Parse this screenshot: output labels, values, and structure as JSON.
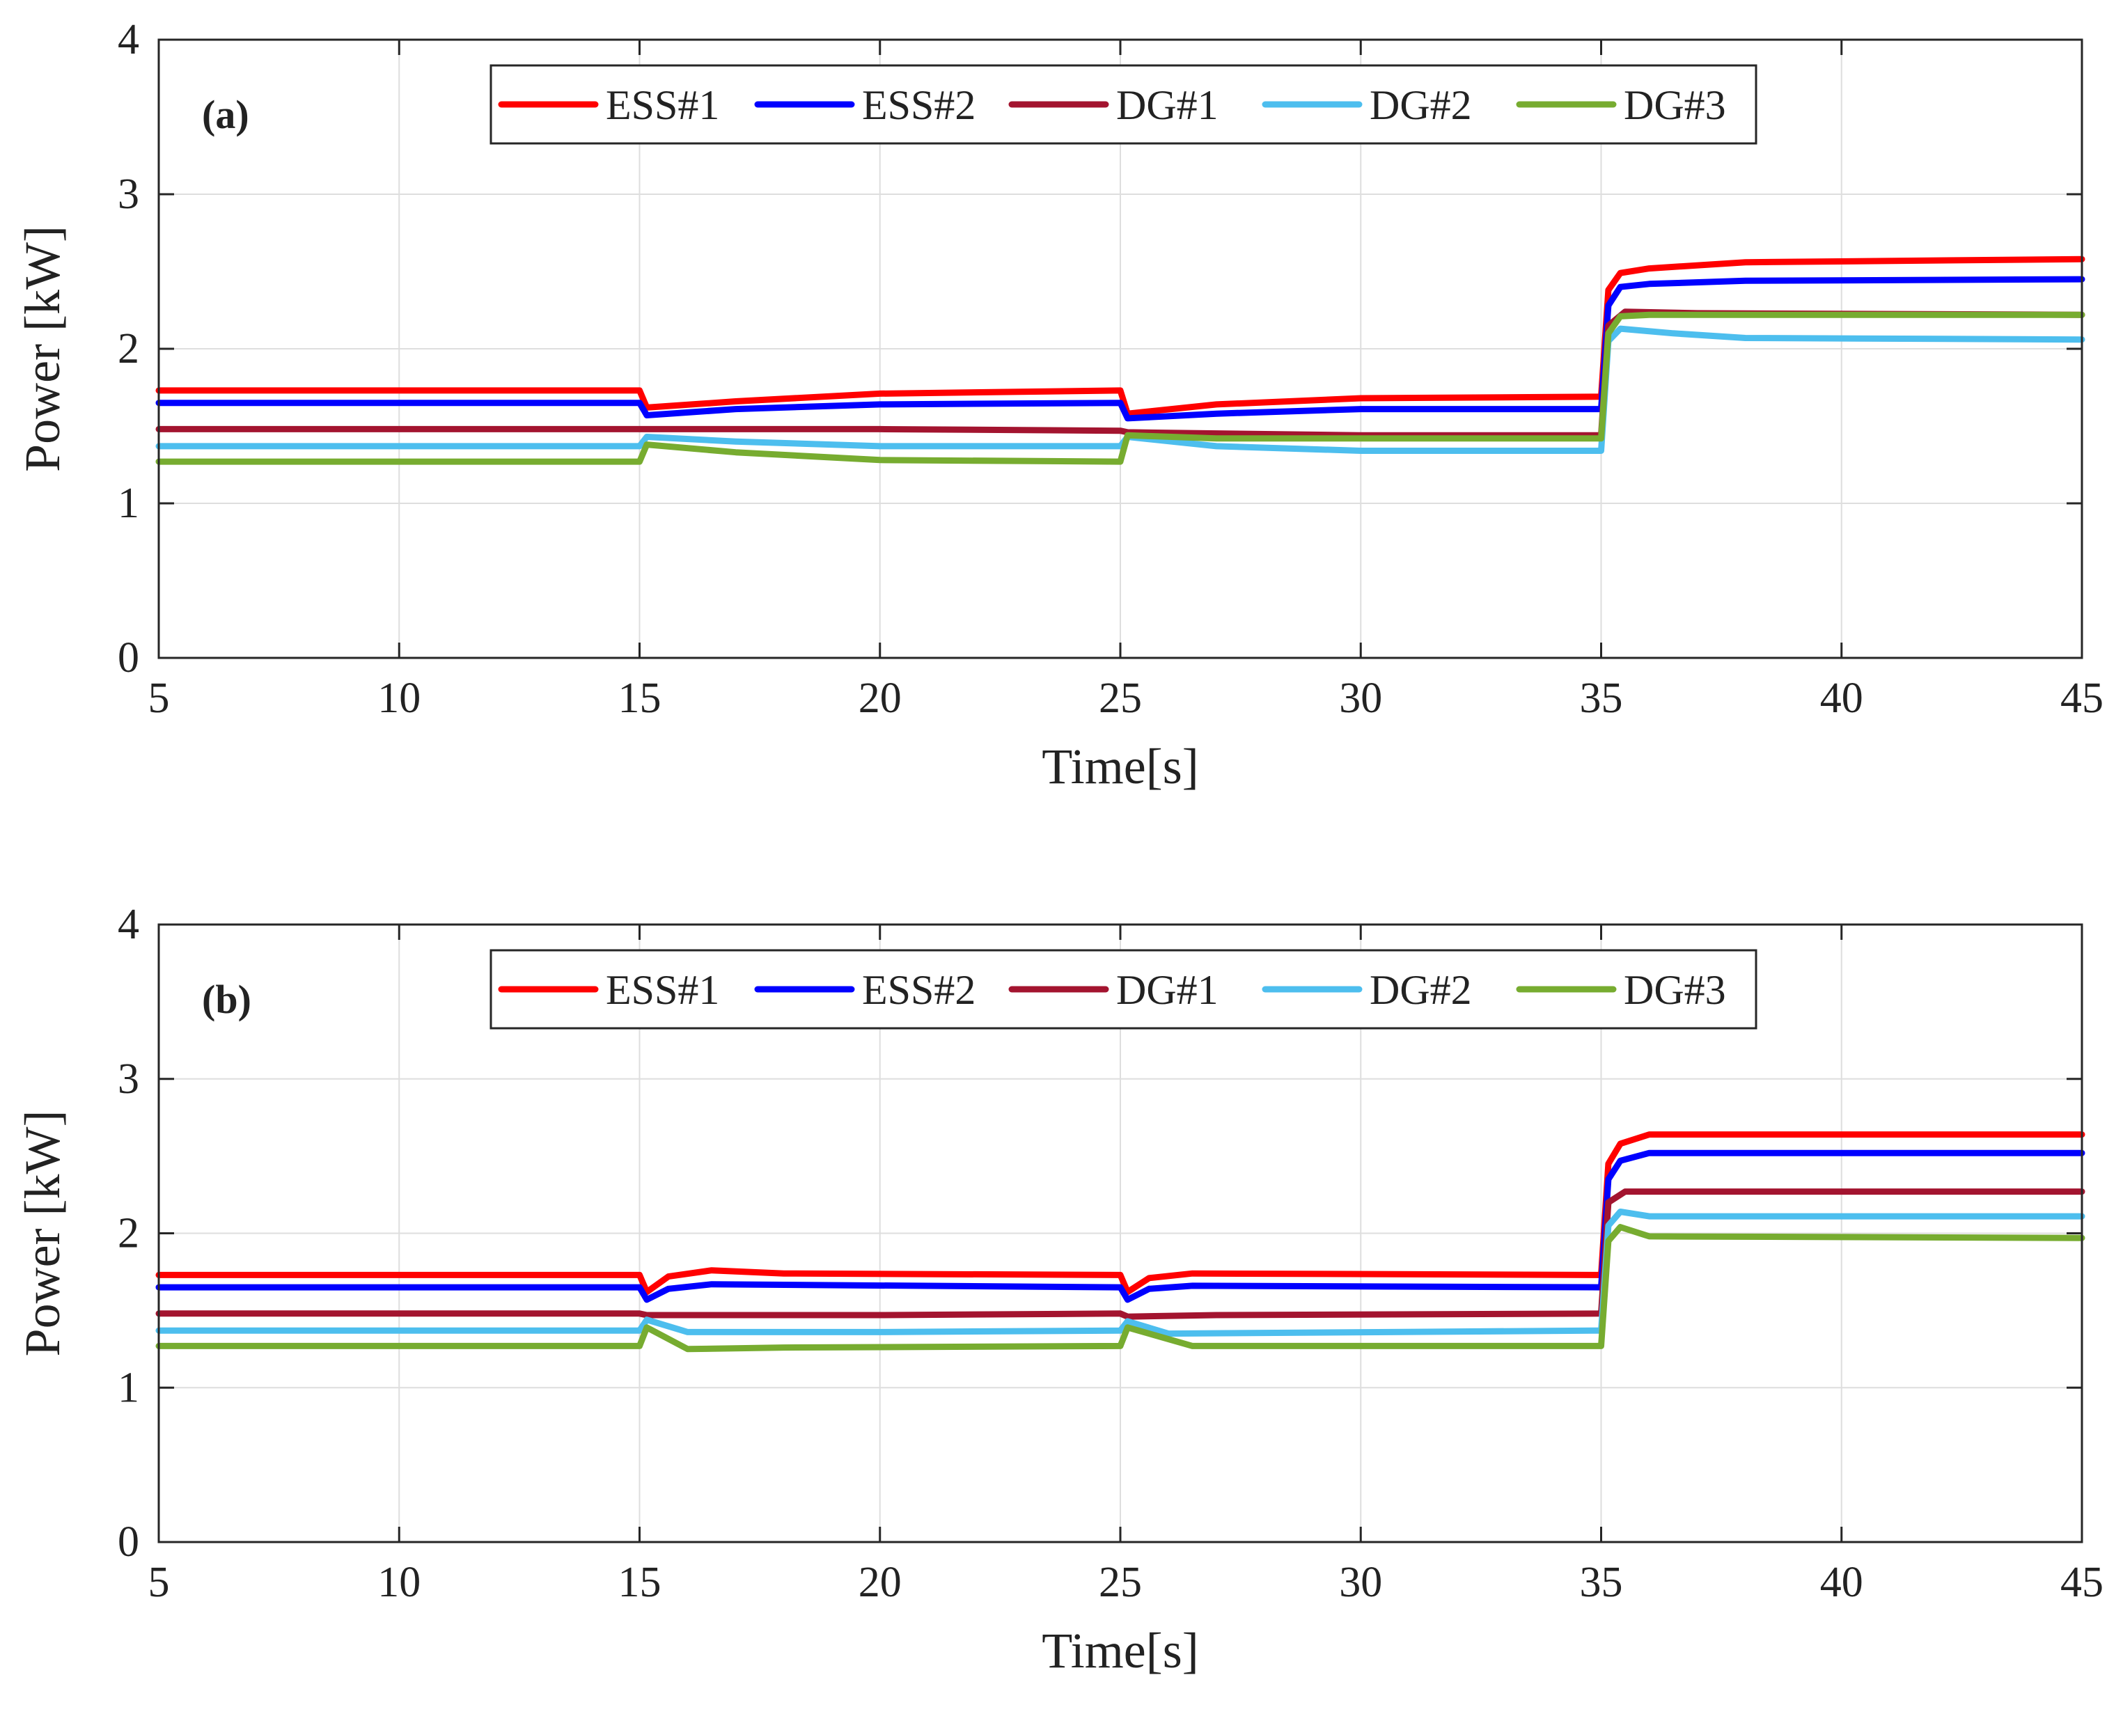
{
  "colors": {
    "ESS#1": "#ff0000",
    "ESS#2": "#0000ff",
    "DG#1": "#a3142f",
    "DG#2": "#4dbeee",
    "DG#3": "#77ac30",
    "grid": "#dedede",
    "axis": "#262626"
  },
  "chart_data": [
    {
      "type": "line",
      "panel_label": "(a)",
      "xlabel": "Time[s]",
      "ylabel": "Power [kW]",
      "xlim": [
        5,
        45
      ],
      "ylim": [
        0,
        4
      ],
      "xticks": [
        5,
        10,
        15,
        20,
        25,
        30,
        35,
        40,
        45
      ],
      "yticks": [
        0,
        1,
        2,
        3,
        4
      ],
      "grid": true,
      "legend": [
        "ESS#1",
        "ESS#2",
        "DG#1",
        "DG#2",
        "DG#3"
      ],
      "legend_position": "top-center",
      "series": [
        {
          "name": "ESS#1",
          "x": [
            5,
            15,
            15.15,
            17,
            20,
            25,
            25.15,
            27,
            30,
            35,
            35.15,
            35.4,
            36,
            38,
            45
          ],
          "y": [
            1.73,
            1.73,
            1.62,
            1.66,
            1.71,
            1.73,
            1.58,
            1.64,
            1.68,
            1.69,
            2.38,
            2.49,
            2.52,
            2.56,
            2.58
          ]
        },
        {
          "name": "ESS#2",
          "x": [
            5,
            15,
            15.15,
            17,
            20,
            25,
            25.15,
            27,
            30,
            35,
            35.15,
            35.4,
            36,
            38,
            45
          ],
          "y": [
            1.65,
            1.65,
            1.57,
            1.61,
            1.64,
            1.65,
            1.55,
            1.58,
            1.61,
            1.61,
            2.28,
            2.4,
            2.42,
            2.44,
            2.45
          ]
        },
        {
          "name": "DG#1",
          "x": [
            5,
            15,
            15.15,
            20,
            25,
            25.15,
            30,
            35,
            35.15,
            35.5,
            37,
            45
          ],
          "y": [
            1.48,
            1.48,
            1.48,
            1.48,
            1.47,
            1.46,
            1.44,
            1.44,
            2.15,
            2.24,
            2.23,
            2.22
          ]
        },
        {
          "name": "DG#2",
          "x": [
            5,
            15,
            15.15,
            17,
            20,
            25,
            25.15,
            27,
            30,
            35,
            35.15,
            35.4,
            36.5,
            38,
            45
          ],
          "y": [
            1.37,
            1.37,
            1.43,
            1.4,
            1.37,
            1.37,
            1.43,
            1.37,
            1.34,
            1.34,
            2.05,
            2.13,
            2.1,
            2.07,
            2.06
          ]
        },
        {
          "name": "DG#3",
          "x": [
            5,
            15,
            15.15,
            17,
            20,
            25,
            25.15,
            27,
            30,
            35,
            35.15,
            35.4,
            36,
            38,
            45
          ],
          "y": [
            1.27,
            1.27,
            1.38,
            1.33,
            1.28,
            1.27,
            1.44,
            1.42,
            1.42,
            1.42,
            2.1,
            2.21,
            2.22,
            2.22,
            2.22
          ]
        }
      ]
    },
    {
      "type": "line",
      "panel_label": "(b)",
      "xlabel": "Time[s]",
      "ylabel": "Power [kW]",
      "xlim": [
        5,
        45
      ],
      "ylim": [
        0,
        4
      ],
      "xticks": [
        5,
        10,
        15,
        20,
        25,
        30,
        35,
        40,
        45
      ],
      "yticks": [
        0,
        1,
        2,
        3,
        4
      ],
      "grid": true,
      "legend": [
        "ESS#1",
        "ESS#2",
        "DG#1",
        "DG#2",
        "DG#3"
      ],
      "legend_position": "top-center",
      "series": [
        {
          "name": "ESS#1",
          "x": [
            5,
            15,
            15.15,
            15.6,
            16.5,
            18,
            25,
            25.15,
            25.6,
            26.5,
            35,
            35.15,
            35.4,
            36,
            45
          ],
          "y": [
            1.73,
            1.73,
            1.62,
            1.72,
            1.76,
            1.74,
            1.73,
            1.62,
            1.71,
            1.74,
            1.73,
            2.45,
            2.58,
            2.64,
            2.64
          ]
        },
        {
          "name": "ESS#2",
          "x": [
            5,
            15,
            15.15,
            15.6,
            16.5,
            25,
            25.15,
            25.6,
            26.5,
            35,
            35.15,
            35.4,
            36,
            45
          ],
          "y": [
            1.65,
            1.65,
            1.57,
            1.64,
            1.67,
            1.65,
            1.57,
            1.64,
            1.66,
            1.65,
            2.35,
            2.47,
            2.52,
            2.52
          ]
        },
        {
          "name": "DG#1",
          "x": [
            5,
            15,
            15.15,
            20,
            25,
            25.15,
            27,
            35,
            35.15,
            35.5,
            45
          ],
          "y": [
            1.48,
            1.48,
            1.47,
            1.47,
            1.48,
            1.46,
            1.47,
            1.48,
            2.2,
            2.27,
            2.27
          ]
        },
        {
          "name": "DG#2",
          "x": [
            5,
            15,
            15.15,
            16,
            20,
            25,
            25.15,
            26,
            35,
            35.15,
            35.4,
            36,
            45
          ],
          "y": [
            1.37,
            1.37,
            1.44,
            1.36,
            1.36,
            1.37,
            1.43,
            1.35,
            1.37,
            2.05,
            2.14,
            2.11,
            2.11
          ]
        },
        {
          "name": "DG#3",
          "x": [
            5,
            15,
            15.15,
            16,
            18,
            25,
            25.15,
            26.5,
            35,
            35.15,
            35.4,
            36,
            45
          ],
          "y": [
            1.27,
            1.27,
            1.39,
            1.25,
            1.26,
            1.27,
            1.39,
            1.27,
            1.27,
            1.95,
            2.04,
            1.98,
            1.97
          ]
        }
      ]
    }
  ]
}
